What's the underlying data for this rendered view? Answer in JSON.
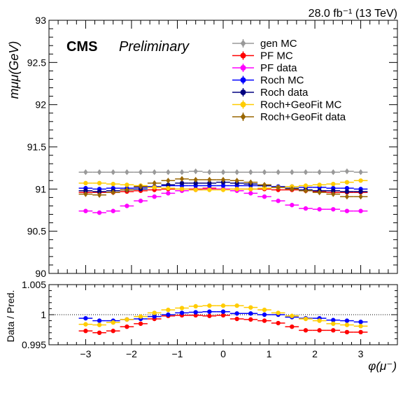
{
  "lumi_label": "28.0 fb⁻¹ (13 TeV)",
  "cms_label": "CMS",
  "prelim_label": "Preliminary",
  "chart_data": [
    {
      "type": "scatter",
      "panel": "main",
      "ylabel": "mμμ(GeV)",
      "ylim": [
        90,
        93
      ],
      "xlim": [
        -3.8,
        3.8
      ],
      "yticks": [
        "90",
        "90.5",
        "91",
        "91.5",
        "92",
        "92.5",
        "93"
      ],
      "ytick_values": [
        90,
        90.5,
        91,
        91.5,
        92,
        92.5,
        93
      ],
      "legend_placement": "top-right",
      "x": [
        -3.0,
        -2.7,
        -2.4,
        -2.1,
        -1.8,
        -1.5,
        -1.2,
        -0.9,
        -0.6,
        -0.3,
        0.0,
        0.3,
        0.6,
        0.9,
        1.2,
        1.5,
        1.8,
        2.1,
        2.4,
        2.7,
        3.0
      ],
      "series": [
        {
          "name": "gen MC",
          "color": "#999999",
          "marker": "diamond",
          "values": [
            91.2,
            91.2,
            91.2,
            91.2,
            91.2,
            91.2,
            91.2,
            91.2,
            91.21,
            91.2,
            91.2,
            91.2,
            91.2,
            91.2,
            91.2,
            91.2,
            91.2,
            91.2,
            91.2,
            91.21,
            91.2
          ]
        },
        {
          "name": "PF MC",
          "color": "#ff0000",
          "marker": "circle",
          "values": [
            90.96,
            90.96,
            90.96,
            90.97,
            90.98,
            90.99,
            91.0,
            91.0,
            91.0,
            91.01,
            91.0,
            91.0,
            91.0,
            91.0,
            90.99,
            90.99,
            90.98,
            90.97,
            90.96,
            90.96,
            90.96
          ]
        },
        {
          "name": "PF data",
          "color": "#ff00ff",
          "marker": "circle",
          "values": [
            90.74,
            90.72,
            90.74,
            90.8,
            90.86,
            90.91,
            90.95,
            90.98,
            90.99,
            91.0,
            91.0,
            90.98,
            90.95,
            90.91,
            90.86,
            90.81,
            90.77,
            90.76,
            90.76,
            90.74,
            90.74
          ]
        },
        {
          "name": "Roch MC",
          "color": "#0000ff",
          "marker": "circle",
          "values": [
            91.01,
            91.0,
            91.01,
            91.01,
            91.02,
            91.03,
            91.04,
            91.04,
            91.04,
            91.04,
            91.04,
            91.04,
            91.04,
            91.04,
            91.03,
            91.03,
            91.02,
            91.02,
            91.01,
            91.01,
            91.0
          ]
        },
        {
          "name": "Roch data",
          "color": "#000080",
          "marker": "circle",
          "values": [
            90.98,
            90.97,
            90.98,
            90.99,
            91.0,
            91.02,
            91.05,
            91.07,
            91.07,
            91.07,
            91.08,
            91.07,
            91.06,
            91.04,
            91.02,
            91.01,
            90.99,
            90.98,
            90.98,
            90.97,
            90.97
          ]
        },
        {
          "name": "Roch+GeoFit MC",
          "color": "#ffcc00",
          "marker": "circle",
          "values": [
            91.07,
            91.07,
            91.06,
            91.05,
            91.04,
            91.02,
            91.01,
            91.0,
            90.99,
            90.99,
            90.99,
            91.0,
            91.0,
            91.01,
            91.02,
            91.03,
            91.04,
            91.05,
            91.06,
            91.08,
            91.1
          ]
        },
        {
          "name": "Roch+GeoFit data",
          "color": "#996600",
          "marker": "diamond",
          "values": [
            90.94,
            90.93,
            90.96,
            90.99,
            91.03,
            91.07,
            91.1,
            91.12,
            91.11,
            91.11,
            91.11,
            91.1,
            91.08,
            91.05,
            91.02,
            91.0,
            90.98,
            90.96,
            90.94,
            90.91,
            90.91
          ]
        }
      ]
    },
    {
      "type": "scatter",
      "panel": "ratio",
      "xlabel": "φ(μ⁻)",
      "ylabel": "Data / Pred.",
      "ylim": [
        0.995,
        1.005
      ],
      "xlim": [
        -3.8,
        3.8
      ],
      "yticks": [
        "0.995",
        "1",
        "1.005"
      ],
      "ytick_values": [
        0.995,
        1.0,
        1.005
      ],
      "xticks": [
        "−3",
        "−2",
        "−1",
        "0",
        "1",
        "2",
        "3"
      ],
      "xtick_values": [
        -3,
        -2,
        -1,
        0,
        1,
        2,
        3
      ],
      "reference_line": 1.0,
      "x": [
        -3.0,
        -2.7,
        -2.4,
        -2.1,
        -1.8,
        -1.5,
        -1.2,
        -0.9,
        -0.6,
        -0.3,
        0.0,
        0.3,
        0.6,
        0.9,
        1.2,
        1.5,
        1.8,
        2.1,
        2.4,
        2.7,
        3.0
      ],
      "series": [
        {
          "color": "#ff0000",
          "marker": "circle",
          "values": [
            0.9973,
            0.997,
            0.9973,
            0.998,
            0.9985,
            0.9993,
            0.9998,
            0.9999,
            0.9999,
            0.9998,
            0.9999,
            0.9993,
            0.9992,
            0.999,
            0.9986,
            0.998,
            0.9974,
            0.9974,
            0.9974,
            0.9971,
            0.9971
          ]
        },
        {
          "color": "#0000ff",
          "marker": "circle",
          "values": [
            0.9994,
            0.999,
            0.999,
            0.9992,
            0.9993,
            0.9997,
            1.0,
            1.0003,
            1.0004,
            1.0005,
            1.0005,
            1.0002,
            1.0002,
            1.0,
            1.0,
            0.9996,
            0.9994,
            0.9994,
            0.9991,
            0.999,
            0.9988
          ]
        },
        {
          "color": "#ffcc00",
          "marker": "circle",
          "values": [
            0.9984,
            0.9983,
            0.9987,
            0.9992,
            0.9997,
            1.0003,
            1.0008,
            1.0011,
            1.0014,
            1.0015,
            1.0015,
            1.0015,
            1.0012,
            1.0008,
            1.0003,
            0.9998,
            0.9993,
            0.999,
            0.9985,
            0.9983,
            0.9981
          ]
        }
      ]
    }
  ]
}
